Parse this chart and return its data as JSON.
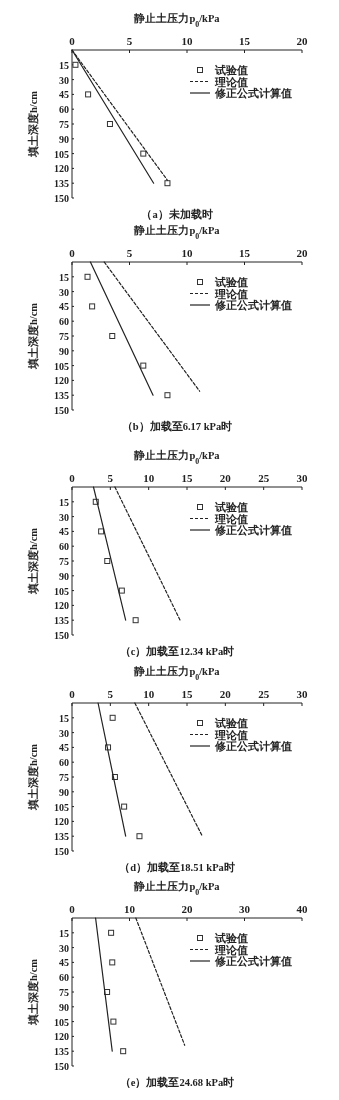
{
  "chart_data": [
    {
      "type": "line",
      "title": "（a）未加载时",
      "xlabel": "静止土压力p$_{0}$/kPa",
      "ylabel": "填土深度h/cm",
      "xlim": [
        0,
        20
      ],
      "xticks": [
        0,
        5,
        10,
        15,
        20
      ],
      "ylim": [
        150,
        0
      ],
      "yticks": [
        15,
        30,
        45,
        60,
        75,
        90,
        105,
        120,
        135,
        150
      ],
      "legend": "top right",
      "series": [
        {
          "name": "试验值",
          "type": "scatter",
          "marker": "square",
          "color": "#333333",
          "x": [
            0.3,
            1.4,
            3.3,
            6.2,
            8.3
          ],
          "values": [
            15,
            45,
            75,
            105,
            135
          ]
        },
        {
          "name": "理论值",
          "type": "line",
          "line_style": "dashed",
          "color": "#222222",
          "x": [
            0,
            8.3
          ],
          "values": [
            0,
            132
          ]
        },
        {
          "name": "修正公式计算值",
          "type": "line",
          "line_style": "solid",
          "color": "#222222",
          "x": [
            0,
            7.1
          ],
          "values": [
            0,
            135
          ]
        }
      ]
    },
    {
      "type": "line",
      "title": "（b）加载至6.17 kPa时",
      "xlabel": "静止土压力p$_{0}$/kPa",
      "ylabel": "填土深度h/cm",
      "xlim": [
        0,
        20
      ],
      "xticks": [
        0,
        5,
        10,
        15,
        20
      ],
      "ylim": [
        150,
        0
      ],
      "yticks": [
        15,
        30,
        45,
        60,
        75,
        90,
        105,
        120,
        135,
        150
      ],
      "legend": "top right",
      "series": [
        {
          "name": "试验值",
          "type": "scatter",
          "marker": "square",
          "color": "#333333",
          "x": [
            1.35,
            1.75,
            3.5,
            6.2,
            8.3
          ],
          "values": [
            15,
            45,
            75,
            105,
            135
          ]
        },
        {
          "name": "理论值",
          "type": "line",
          "line_style": "dashed",
          "color": "#222222",
          "x": [
            2.8,
            11.1
          ],
          "values": [
            0,
            131
          ]
        },
        {
          "name": "修正公式计算值",
          "type": "line",
          "line_style": "solid",
          "color": "#222222",
          "x": [
            1.6,
            7.05
          ],
          "values": [
            0,
            135
          ]
        }
      ]
    },
    {
      "type": "line",
      "title": "（c）加载至12.34 kPa时",
      "xlabel": "静止土压力p$_{0}$/kPa",
      "ylabel": "填土深度h/cm",
      "xlim": [
        0,
        30
      ],
      "xticks": [
        0,
        5,
        10,
        15,
        20,
        25,
        30
      ],
      "ylim": [
        150,
        0
      ],
      "yticks": [
        15,
        30,
        45,
        60,
        75,
        90,
        105,
        120,
        135,
        150
      ],
      "legend": "top right",
      "series": [
        {
          "name": "试验值",
          "type": "scatter",
          "marker": "square",
          "color": "#333333",
          "x": [
            3.1,
            3.8,
            4.6,
            6.5,
            8.3
          ],
          "values": [
            15,
            45,
            75,
            105,
            135
          ]
        },
        {
          "name": "理论值",
          "type": "line",
          "line_style": "dashed",
          "color": "#222222",
          "x": [
            5.6,
            14.1
          ],
          "values": [
            0,
            135
          ]
        },
        {
          "name": "修正公式计算值",
          "type": "line",
          "line_style": "solid",
          "color": "#222222",
          "x": [
            2.8,
            7.0
          ],
          "values": [
            0,
            135
          ]
        }
      ]
    },
    {
      "type": "line",
      "title": "（d）加载至18.51 kPa时",
      "xlabel": "静止土压力p$_{0}$/kPa",
      "ylabel": "填土深度h/cm",
      "xlim": [
        0,
        30
      ],
      "xticks": [
        0,
        5,
        10,
        15,
        20,
        25,
        30
      ],
      "ylim": [
        150,
        0
      ],
      "yticks": [
        15,
        30,
        45,
        60,
        75,
        90,
        105,
        120,
        135,
        150
      ],
      "legend": "top right",
      "series": [
        {
          "name": "试验值",
          "type": "scatter",
          "marker": "square",
          "color": "#333333",
          "x": [
            5.3,
            4.7,
            5.6,
            6.8,
            8.8
          ],
          "values": [
            15,
            45,
            75,
            105,
            135
          ]
        },
        {
          "name": "理论值",
          "type": "line",
          "line_style": "dashed",
          "color": "#222222",
          "x": [
            8.2,
            17.0
          ],
          "values": [
            0,
            135
          ]
        },
        {
          "name": "修正公式计算值",
          "type": "line",
          "line_style": "solid",
          "color": "#222222",
          "x": [
            3.4,
            7.0
          ],
          "values": [
            0,
            135
          ]
        }
      ]
    },
    {
      "type": "line",
      "title": "（e）加载至24.68 kPa时",
      "xlabel": "静止土压力p$_{0}$/kPa",
      "ylabel": "填土深度h/cm",
      "xlim": [
        0,
        40
      ],
      "xticks": [
        0,
        10,
        20,
        30,
        40
      ],
      "ylim": [
        150,
        0
      ],
      "yticks": [
        15,
        30,
        45,
        60,
        75,
        90,
        105,
        120,
        135,
        150
      ],
      "legend": "top right",
      "series": [
        {
          "name": "试验值",
          "type": "scatter",
          "marker": "square",
          "color": "#333333",
          "x": [
            6.8,
            7.0,
            6.1,
            7.2,
            8.9
          ],
          "values": [
            15,
            45,
            75,
            105,
            135
          ]
        },
        {
          "name": "理论值",
          "type": "line",
          "line_style": "dashed",
          "color": "#222222",
          "x": [
            11.1,
            19.6
          ],
          "values": [
            0,
            129
          ]
        },
        {
          "name": "修正公式计算值",
          "type": "line",
          "line_style": "solid",
          "color": "#222222",
          "x": [
            4.1,
            7.0
          ],
          "values": [
            0,
            135
          ]
        }
      ]
    }
  ]
}
